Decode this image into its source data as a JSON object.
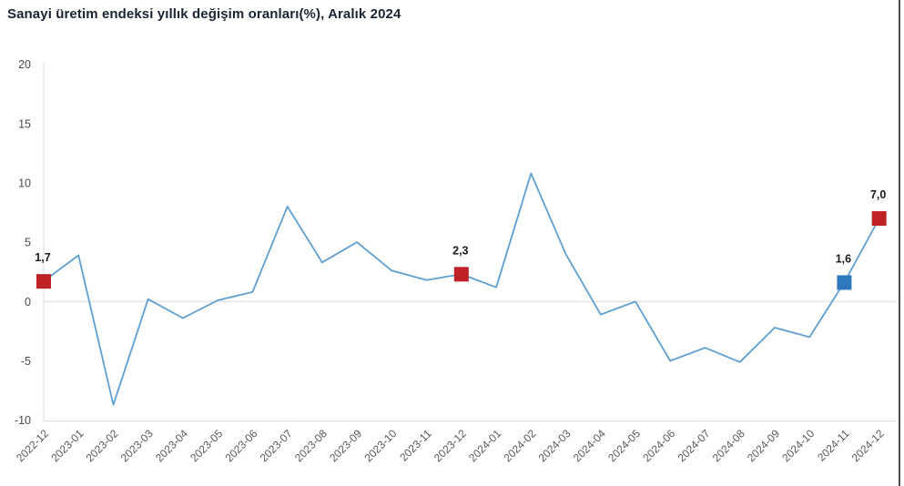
{
  "header": {
    "title": "Sanayi üretim endeksi yıllık değişim oranları(%), Aralık 2024"
  },
  "chart_data": {
    "type": "line",
    "title": "Sanayi üretim endeksi yıllık değişim oranları(%), Aralık 2024",
    "xlabel": "",
    "ylabel": "",
    "ylim": [
      -10,
      20
    ],
    "yticks": [
      20,
      15,
      10,
      5,
      0,
      -5,
      -10
    ],
    "grid": "zero-line-only",
    "legend": "none",
    "x": [
      "2022-12",
      "2023-01",
      "2023-02",
      "2023-03",
      "2023-04",
      "2023-05",
      "2023-06",
      "2023-07",
      "2023-08",
      "2023-09",
      "2023-10",
      "2023-11",
      "2023-12",
      "2024-01",
      "2024-02",
      "2024-03",
      "2024-04",
      "2024-05",
      "2024-06",
      "2024-07",
      "2024-08",
      "2024-09",
      "2024-10",
      "2024-11",
      "2024-12"
    ],
    "values": [
      1.7,
      3.9,
      -8.7,
      0.2,
      -1.4,
      0.1,
      0.8,
      8.0,
      3.3,
      5.0,
      2.6,
      1.8,
      2.3,
      1.2,
      10.8,
      4.0,
      -1.1,
      0.0,
      -5.0,
      -3.9,
      -5.1,
      -2.2,
      -3.0,
      1.6,
      7.0
    ],
    "line_color": "#5f9fd0",
    "axis_color": "#d9d9d9",
    "tick_color": "#4a4a4a",
    "xtick_color": "#585858",
    "label_color": "#1a1a1a",
    "markers": [
      {
        "x": "2022-12",
        "value": 1.7,
        "label": "1,7",
        "color": "#be2126"
      },
      {
        "x": "2023-12",
        "value": 2.3,
        "label": "2,3",
        "color": "#be2126"
      },
      {
        "x": "2024-11",
        "value": 1.6,
        "label": "1,6",
        "color": "#2e79be"
      },
      {
        "x": "2024-12",
        "value": 7.0,
        "label": "7,0",
        "color": "#be2126"
      }
    ]
  }
}
